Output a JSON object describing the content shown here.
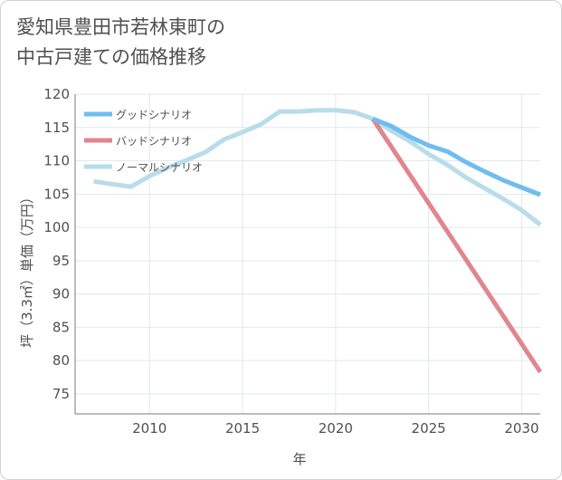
{
  "title": {
    "line1": "愛知県豊田市若林東町の",
    "line2": "中古戸建ての価格推移"
  },
  "chart_data": {
    "type": "line",
    "title": "愛知県豊田市若林東町の中古戸建ての価格推移",
    "xlabel": "年",
    "ylabel": "坪（3.3㎡）単価（万円）",
    "xlim": [
      2006,
      2031
    ],
    "ylim": [
      72,
      120
    ],
    "xticks": [
      2010,
      2015,
      2020,
      2025,
      2030
    ],
    "yticks": [
      75,
      80,
      85,
      90,
      95,
      100,
      105,
      110,
      115,
      120
    ],
    "grid": true,
    "legend_position": "top-left",
    "series": [
      {
        "name": "グッドシナリオ",
        "color": "#6fbdf0",
        "x": [
          2022,
          2023,
          2024,
          2025,
          2026,
          2027,
          2028,
          2029,
          2030,
          2031
        ],
        "y": [
          116.3,
          115.2,
          113.6,
          112.3,
          111.4,
          109.8,
          108.4,
          107.1,
          106.0,
          104.9
        ]
      },
      {
        "name": "バッドシナリオ",
        "color": "#e0868e",
        "x": [
          2022,
          2031
        ],
        "y": [
          116.3,
          78.3
        ]
      },
      {
        "name": "ノーマルシナリオ",
        "color": "#b8dcea",
        "x": [
          2007,
          2008,
          2009,
          2010,
          2011,
          2012,
          2013,
          2014,
          2015,
          2016,
          2017,
          2018,
          2019,
          2020,
          2021,
          2022,
          2023,
          2024,
          2025,
          2026,
          2027,
          2028,
          2029,
          2030,
          2031
        ],
        "y": [
          106.9,
          106.5,
          106.1,
          107.7,
          109.0,
          110.1,
          111.3,
          113.2,
          114.3,
          115.5,
          117.4,
          117.4,
          117.6,
          117.6,
          117.3,
          116.3,
          114.5,
          112.9,
          111.0,
          109.4,
          107.5,
          105.9,
          104.3,
          102.6,
          100.4
        ]
      }
    ]
  }
}
